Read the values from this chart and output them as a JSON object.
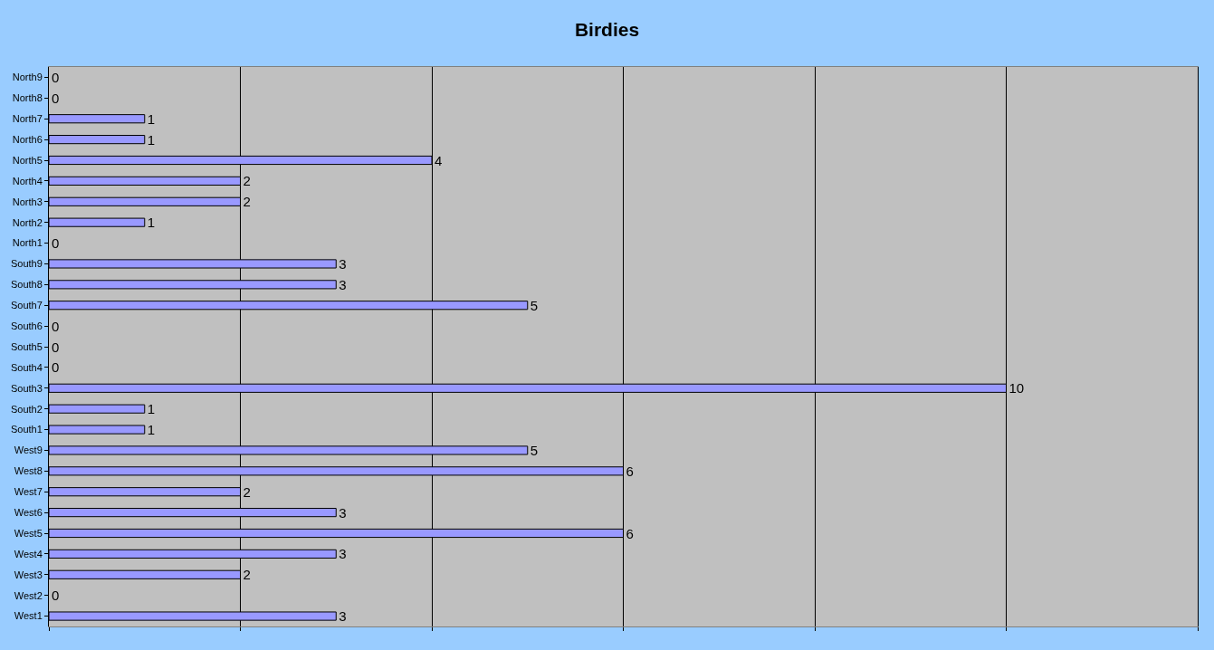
{
  "chart_data": {
    "type": "bar",
    "title": "Birdies",
    "orientation": "horizontal",
    "categories": [
      "North9",
      "North8",
      "North7",
      "North6",
      "North5",
      "North4",
      "North3",
      "North2",
      "North1",
      "South9",
      "South8",
      "South7",
      "South6",
      "South5",
      "South4",
      "South3",
      "South2",
      "South1",
      "West9",
      "West8",
      "West7",
      "West6",
      "West5",
      "West4",
      "West3",
      "West2",
      "West1"
    ],
    "values": [
      0,
      0,
      1,
      1,
      4,
      2,
      2,
      1,
      0,
      3,
      3,
      5,
      0,
      0,
      0,
      10,
      1,
      1,
      5,
      6,
      2,
      3,
      6,
      3,
      2,
      0,
      3
    ],
    "color": "#9999ff",
    "xlim": [
      0,
      12
    ],
    "xticks": [
      {
        "value": 0,
        "label": null
      },
      {
        "value": 2,
        "label": null
      },
      {
        "value": 4,
        "label": null
      },
      {
        "value": 6,
        "label": null
      },
      {
        "value": 8,
        "label": null
      },
      {
        "value": 10,
        "label": null
      },
      {
        "value": 12,
        "label": null
      }
    ],
    "tick_labels": "y",
    "grid": "x",
    "data_labels": true
  }
}
